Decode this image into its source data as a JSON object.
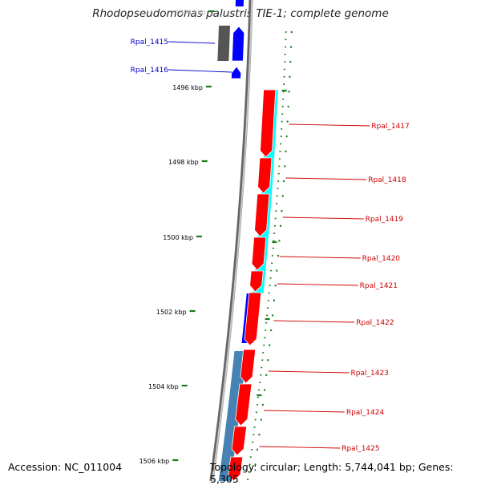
{
  "title": "Rhodopseudomonas palustris TIE-1; complete genome",
  "accession": "Accession: NC_011004",
  "summary": "Topology: circular; Length: 5,744,041 bp; Genes: 5,305",
  "colors": {
    "backbone": "#8c8c8c",
    "forward_cds": "#0000ff",
    "reverse_cds": "#ff0000",
    "dark_gray_cds": "#555555",
    "cyan_feature": "#00ffff",
    "steel_blue_feature": "#4682b4",
    "tick": "#1a7a1a",
    "left_label": "#0000cc",
    "right_label": "#cc0000"
  },
  "scale_labels": [
    "1494 kbp",
    "1496 kbp",
    "1498 kbp",
    "1500 kbp",
    "1502 kbp",
    "1504 kbp",
    "1506 kbp"
  ],
  "genes_left": [
    "Rpal_1415",
    "Rpal_1416"
  ],
  "genes_right": [
    "Rpal_1417",
    "Rpal_1418",
    "Rpal_1419",
    "Rpal_1420",
    "Rpal_1421",
    "Rpal_1422",
    "Rpal_1423",
    "Rpal_1424",
    "Rpal_1425"
  ]
}
